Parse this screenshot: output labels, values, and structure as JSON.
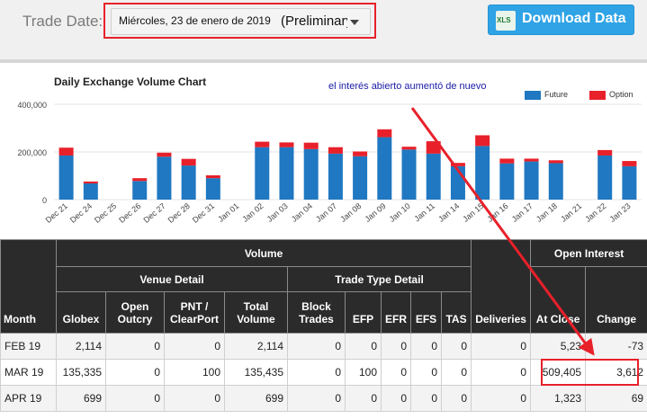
{
  "header": {
    "trade_date_label": "Trade Date:",
    "date_value": "Miércoles, 23 de enero de 2019",
    "status_value": "(Preliminary",
    "download_label": "Download Data",
    "xls_icon_text": "XLS"
  },
  "chart": {
    "annotation": "el interés abierto aumentó de nuevo"
  },
  "chart_data": {
    "type": "bar",
    "stacked": true,
    "title": "Daily Exchange Volume Chart",
    "categories": [
      "Dec 21",
      "Dec 24",
      "Dec 25",
      "Dec 26",
      "Dec 27",
      "Dec 28",
      "Dec 31",
      "Jan 01",
      "Jan 02",
      "Jan 03",
      "Jan 04",
      "Jan 07",
      "Jan 08",
      "Jan 09",
      "Jan 10",
      "Jan 11",
      "Jan 14",
      "Jan 15",
      "Jan 16",
      "Jan 17",
      "Jan 18",
      "Jan 21",
      "Jan 22",
      "Jan 23"
    ],
    "series": [
      {
        "name": "Future",
        "color": "#1f78c1",
        "values": [
          185000,
          68000,
          0,
          78000,
          180000,
          143000,
          90000,
          0,
          220000,
          220000,
          212000,
          193000,
          182000,
          262000,
          210000,
          193000,
          140000,
          225000,
          152000,
          160000,
          153000,
          0,
          185000,
          140000
        ]
      },
      {
        "name": "Option",
        "color": "#e8202a",
        "values": [
          33000,
          8000,
          0,
          12000,
          17000,
          28000,
          12000,
          0,
          23000,
          20000,
          27000,
          27000,
          20000,
          33000,
          12000,
          52000,
          14000,
          45000,
          20000,
          12000,
          12000,
          0,
          23000,
          22000
        ]
      }
    ],
    "yticks": [
      "0",
      "200,000",
      "400,000"
    ],
    "ylim": [
      0,
      400000
    ],
    "legend_position": "top-right"
  },
  "table": {
    "headers": {
      "volume": "Volume",
      "venue_detail": "Venue Detail",
      "trade_type_detail": "Trade Type Detail",
      "open_interest": "Open Interest",
      "month": "Month",
      "globex": "Globex",
      "open_outcry": "Open Outcry",
      "pnt_clearport": "PNT / ClearPort",
      "total_volume": "Total Volume",
      "block_trades": "Block Trades",
      "efp": "EFP",
      "efr": "EFR",
      "efs": "EFS",
      "tas": "TAS",
      "deliveries": "Deliveries",
      "at_close": "At Close",
      "change": "Change"
    },
    "rows": [
      {
        "month": "FEB 19",
        "globex": "2,114",
        "open_outcry": "0",
        "pnt": "0",
        "total": "2,114",
        "block": "0",
        "efp": "0",
        "efr": "0",
        "efs": "0",
        "tas": "0",
        "deliveries": "0",
        "at_close": "5,23",
        "change": "-73"
      },
      {
        "month": "MAR 19",
        "globex": "135,335",
        "open_outcry": "0",
        "pnt": "100",
        "total": "135,435",
        "block": "0",
        "efp": "100",
        "efr": "0",
        "efs": "0",
        "tas": "0",
        "deliveries": "0",
        "at_close": "509,405",
        "change": "3,612"
      },
      {
        "month": "APR 19",
        "globex": "699",
        "open_outcry": "0",
        "pnt": "0",
        "total": "699",
        "block": "0",
        "efp": "0",
        "efr": "0",
        "efs": "0",
        "tas": "0",
        "deliveries": "0",
        "at_close": "1,323",
        "change": "69"
      }
    ]
  }
}
